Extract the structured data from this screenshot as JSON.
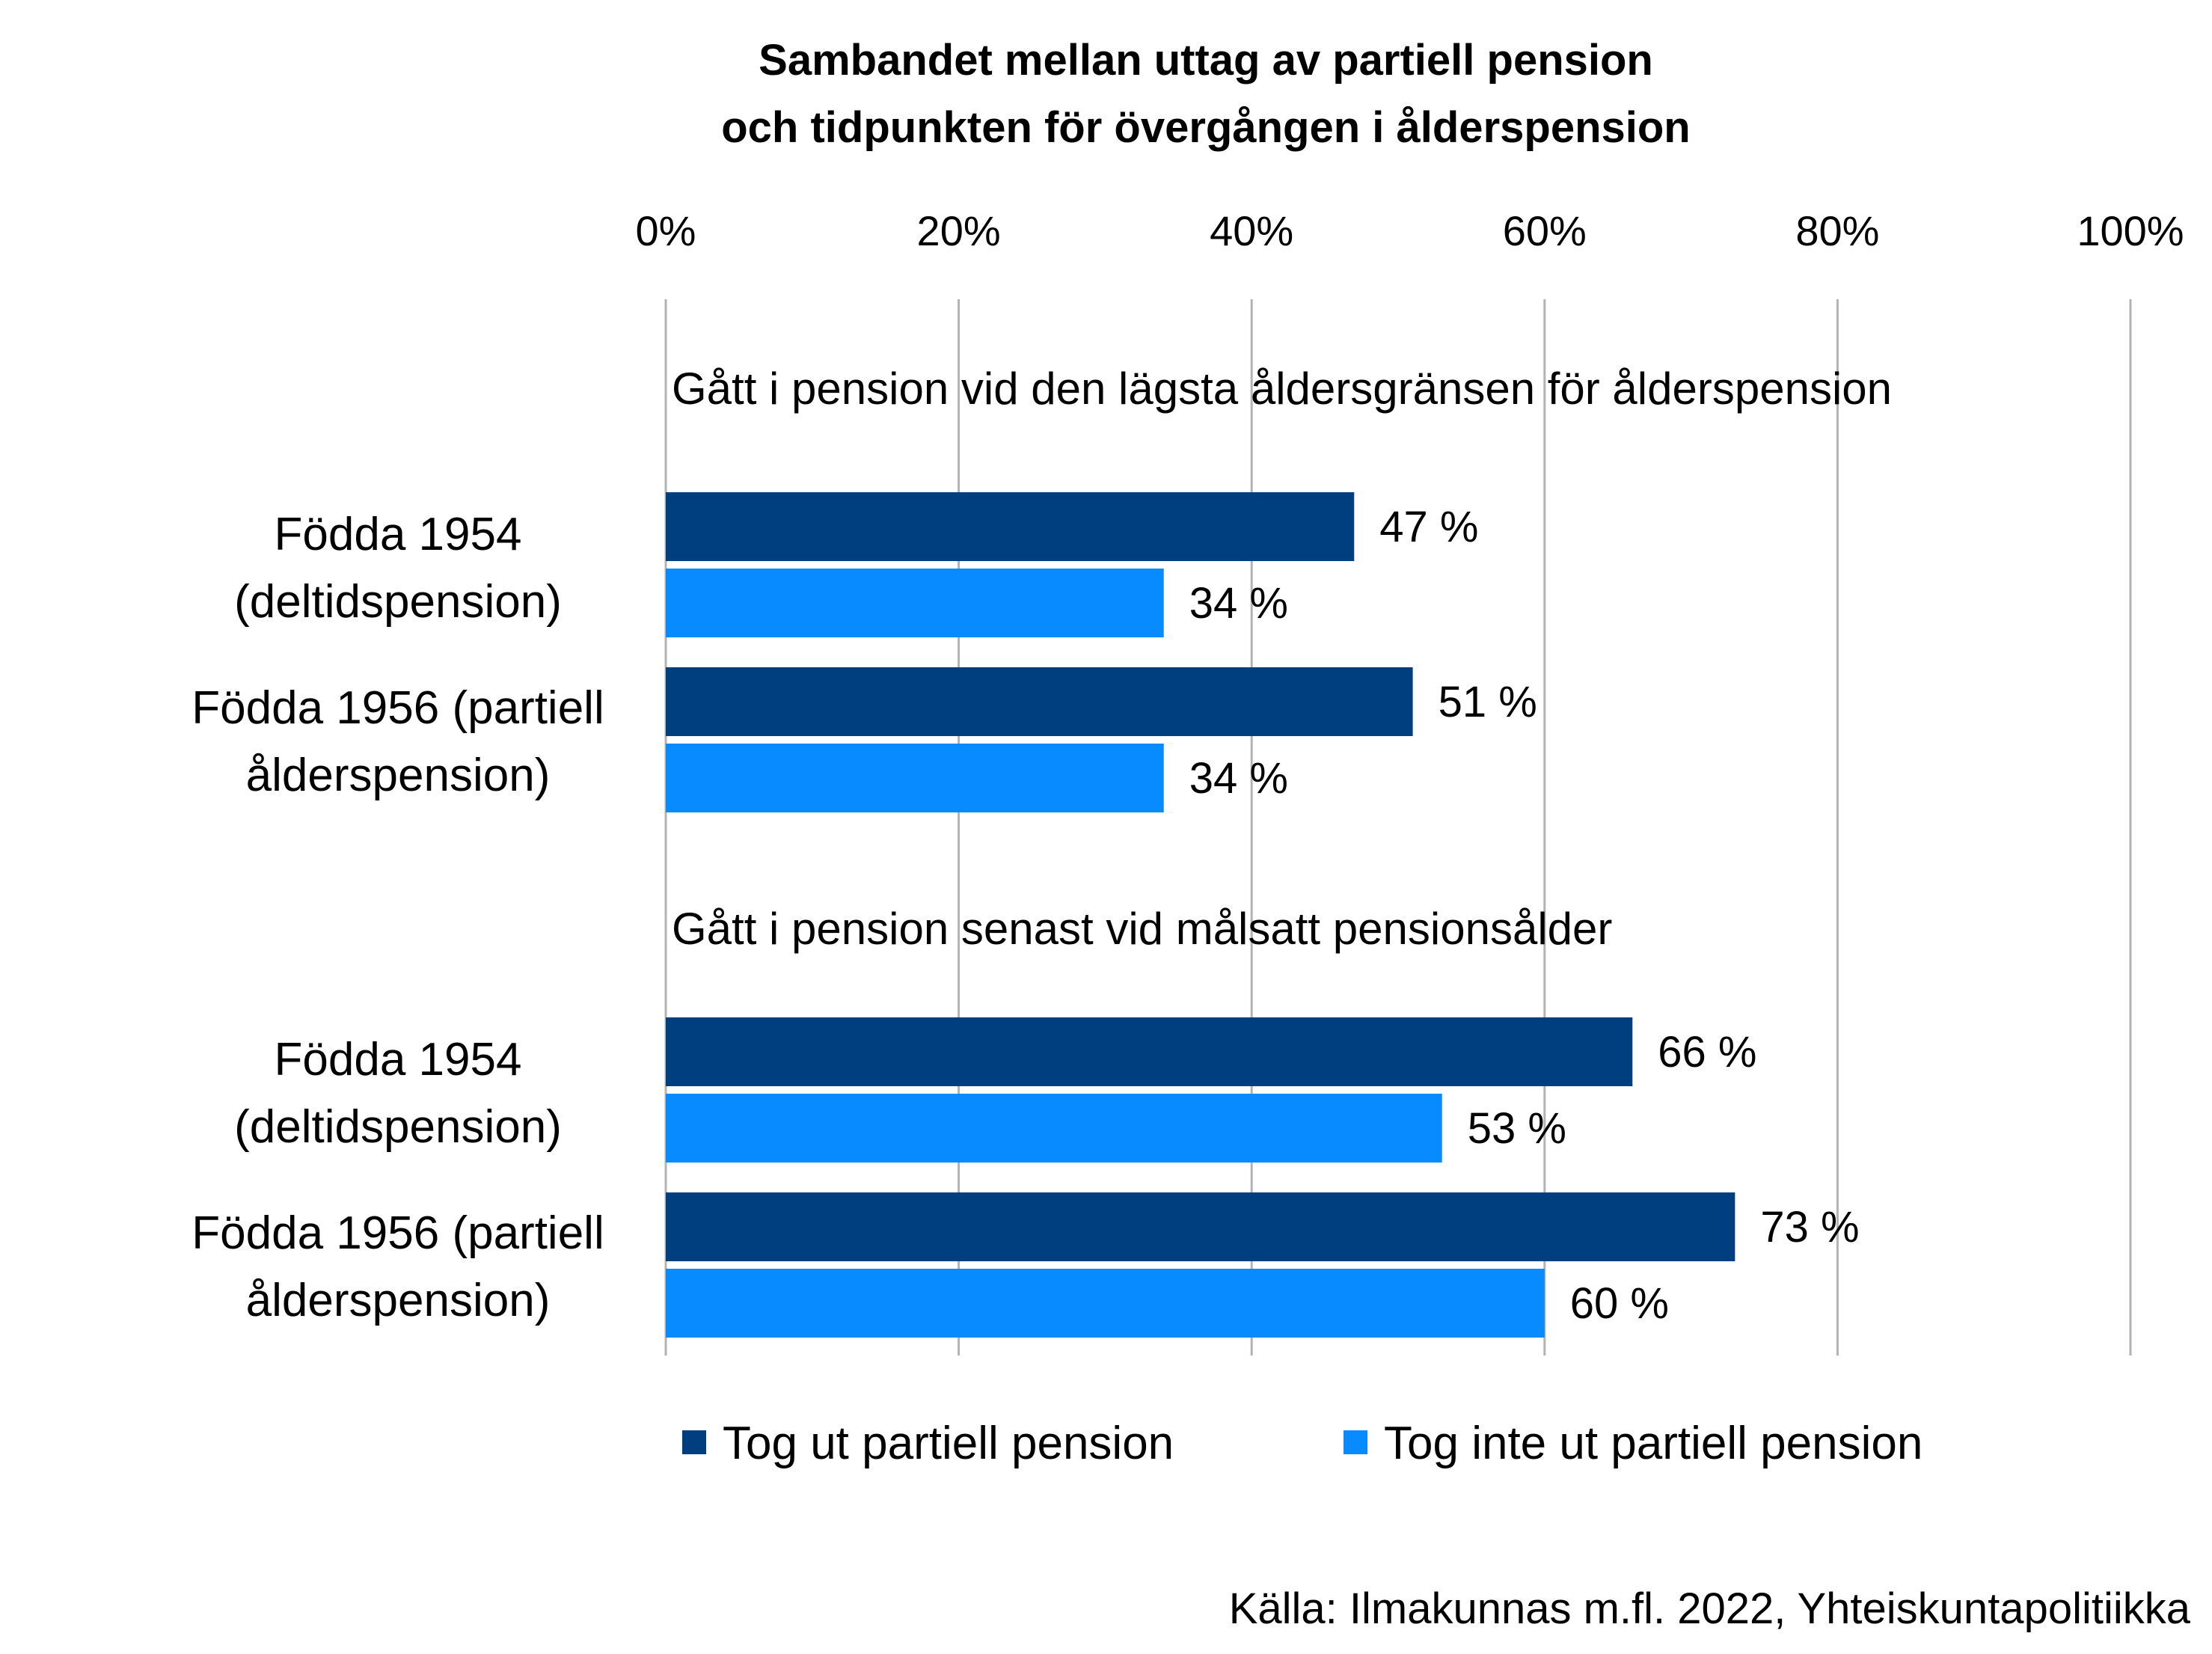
{
  "chart_data": {
    "type": "bar",
    "orientation": "horizontal",
    "title": [
      "Sambandet mellan uttag av partiell pension",
      "och tidpunkten för övergången i ålderspension"
    ],
    "xlim": [
      0,
      100
    ],
    "x_ticks": [
      "0%",
      "20%",
      "40%",
      "60%",
      "80%",
      "100%"
    ],
    "grid": true,
    "legend_position": "bottom",
    "series": [
      {
        "name": "Tog ut partiell pension",
        "color": "#003F7F"
      },
      {
        "name": "Tog inte ut partiell pension",
        "color": "#078BFF"
      }
    ],
    "groups": [
      {
        "title": "Gått i pension vid den lägsta åldersgränsen för ålderspension",
        "categories": [
          {
            "label": [
              "Födda 1954",
              "(deltidspension)"
            ],
            "values": [
              47,
              34
            ],
            "value_labels": [
              "47 %",
              "34 %"
            ]
          },
          {
            "label": [
              "Födda 1956 (partiell",
              "ålderspension)"
            ],
            "values": [
              51,
              34
            ],
            "value_labels": [
              "51 %",
              "34 %"
            ]
          }
        ]
      },
      {
        "title": "Gått i pension senast vid målsatt pensionsålder",
        "categories": [
          {
            "label": [
              "Födda 1954",
              "(deltidspension)"
            ],
            "values": [
              66,
              53
            ],
            "value_labels": [
              "66 %",
              "53 %"
            ]
          },
          {
            "label": [
              "Födda 1956 (partiell",
              "ålderspension)"
            ],
            "values": [
              73,
              60
            ],
            "value_labels": [
              "73 %",
              "60 %"
            ]
          }
        ]
      }
    ],
    "source": "Källa: Ilmakunnas m.fl. 2022, Yhteiskuntapolitiikka"
  }
}
